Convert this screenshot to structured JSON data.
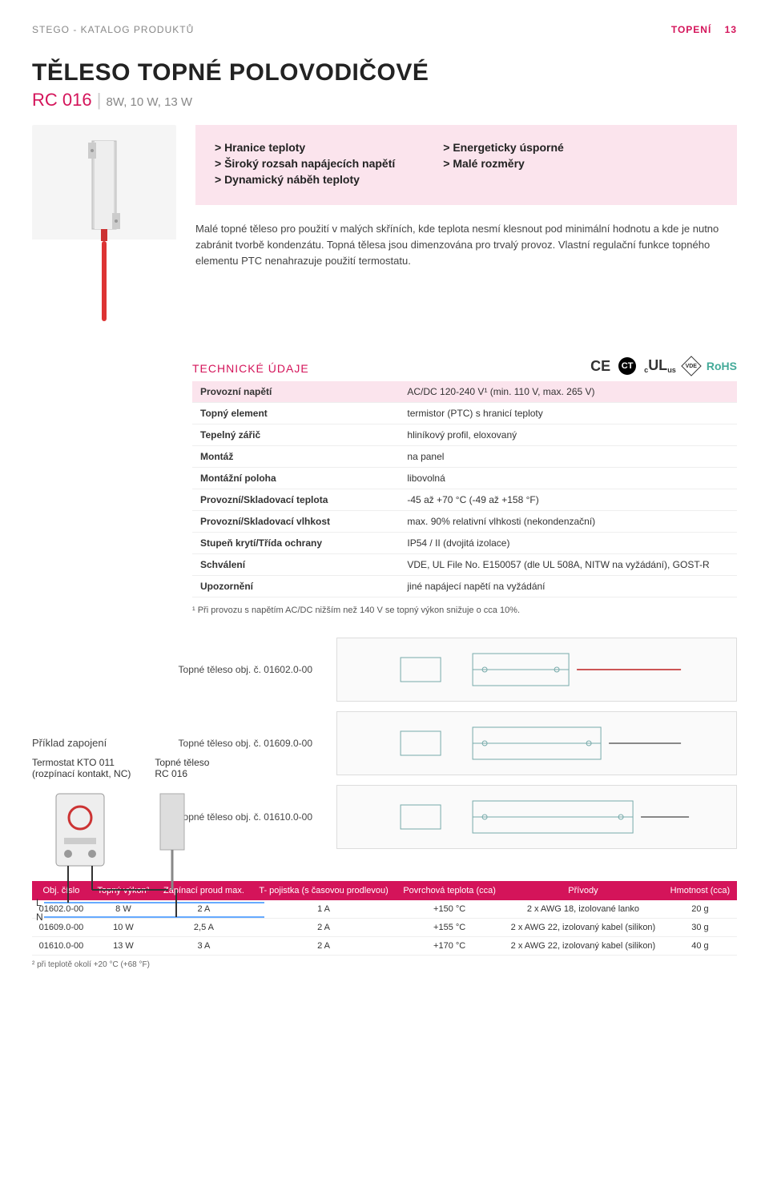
{
  "header": {
    "catalog": "STEGO - KATALOG PRODUKTŮ",
    "category": "TOPENÍ",
    "page": "13"
  },
  "title": "TĚLESO TOPNÉ POLOVODIČOVÉ",
  "subtitle_model": "RC 016",
  "subtitle_variants": "8W, 10 W, 13 W",
  "features_left": [
    "> Hranice teploty",
    "> Široký rozsah napájecích napětí",
    "> Dynamický náběh teploty"
  ],
  "features_right": [
    "> Energeticky úsporné",
    "> Malé rozměry"
  ],
  "description": "Malé topné těleso pro použití v malých skříních, kde teplota nesmí klesnout pod minimální hodnotu a kde je nutno zabránit tvorbě kondenzátu. Topná tělesa jsou dimenzována pro trvalý provoz. Vlastní regulační funkce topného elementu PTC nenahrazuje použití termostatu.",
  "tech_title": "TECHNICKÉ ÚDAJE",
  "cert_labels": {
    "ce": "CE",
    "ct": "CT",
    "ul_c": "c",
    "ul": "UL",
    "ul_us": "us",
    "vde": "VDE",
    "rohs": "RoHS"
  },
  "tech_rows": [
    {
      "l": "Provozní napětí",
      "v": "AC/DC 120-240 V¹ (min. 110 V, max. 265 V)"
    },
    {
      "l": "Topný element",
      "v": "termistor (PTC) s hranicí teploty"
    },
    {
      "l": "Tepelný zářič",
      "v": "hliníkový profil, eloxovaný"
    },
    {
      "l": "Montáž",
      "v": "na panel"
    },
    {
      "l": "Montážní poloha",
      "v": "libovolná"
    },
    {
      "l": "Provozní/Skladovací teplota",
      "v": "-45 až +70 °C (-49 až +158 °F)"
    },
    {
      "l": "Provozní/Skladovací vlhkost",
      "v": "max. 90% relativní vlhkosti (nekondenzační)"
    },
    {
      "l": "Stupeň krytí/Třída ochrany",
      "v": "IP54 / II (dvojitá izolace)"
    },
    {
      "l": "Schválení",
      "v": "VDE, UL File No. E150057 (dle UL 508A, NITW na vyžádání), GOST-R"
    },
    {
      "l": "Upozornění",
      "v": "jiné napájecí napětí na vyžádání"
    }
  ],
  "footnote1": "¹ Při provozu s napětím AC/DC nižším než 140 V se topný výkon snižuje o cca 10%.",
  "drawings": [
    {
      "label": "Topné těleso obj. č. 01602.0-00"
    },
    {
      "label": "Topné těleso obj. č. 01609.0-00"
    },
    {
      "label": "Topné těleso obj. č. 01610.0-00"
    }
  ],
  "example": {
    "title": "Příklad zapojení",
    "left_label_1": "Termostat KTO 011",
    "left_label_2": "(rozpínací kontakt, NC)",
    "right_label_1": "Topné těleso",
    "right_label_2": "RC 016"
  },
  "bottom_table": {
    "headers": [
      "Obj. číslo",
      "Topný výkon²",
      "Zapínací proud max.",
      "T- pojistka (s časovou prodlevou)",
      "Povrchová teplota (cca)",
      "Přívody",
      "Hmotnost (cca)"
    ],
    "rows": [
      [
        "01602.0-00",
        "8 W",
        "2 A",
        "1 A",
        "+150 °C",
        "2 x AWG 18, izolované lanko",
        "20 g"
      ],
      [
        "01609.0-00",
        "10 W",
        "2,5 A",
        "2 A",
        "+155 °C",
        "2 x AWG 22, izolovaný kabel (silikon)",
        "30 g"
      ],
      [
        "01610.0-00",
        "13 W",
        "3 A",
        "2 A",
        "+170 °C",
        "2 x AWG 22, izolovaný kabel (silikon)",
        "40 g"
      ]
    ]
  },
  "footnote2": "² při teplotě okolí +20 °C (+68 °F)",
  "colors": {
    "accent": "#d4145a",
    "pink_bg": "#fbe4ed",
    "text": "#333333",
    "muted": "#888888"
  }
}
